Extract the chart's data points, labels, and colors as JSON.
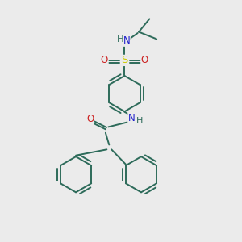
{
  "bg_color": "#ebebeb",
  "bond_color": "#2d6b5a",
  "N_color": "#2222cc",
  "O_color": "#cc2222",
  "S_color": "#cccc00",
  "font_size": 8.5,
  "line_width": 1.4,
  "fig_size": [
    3.0,
    3.0
  ],
  "dpi": 100,
  "xlim": [
    0,
    10
  ],
  "ylim": [
    0,
    10
  ]
}
